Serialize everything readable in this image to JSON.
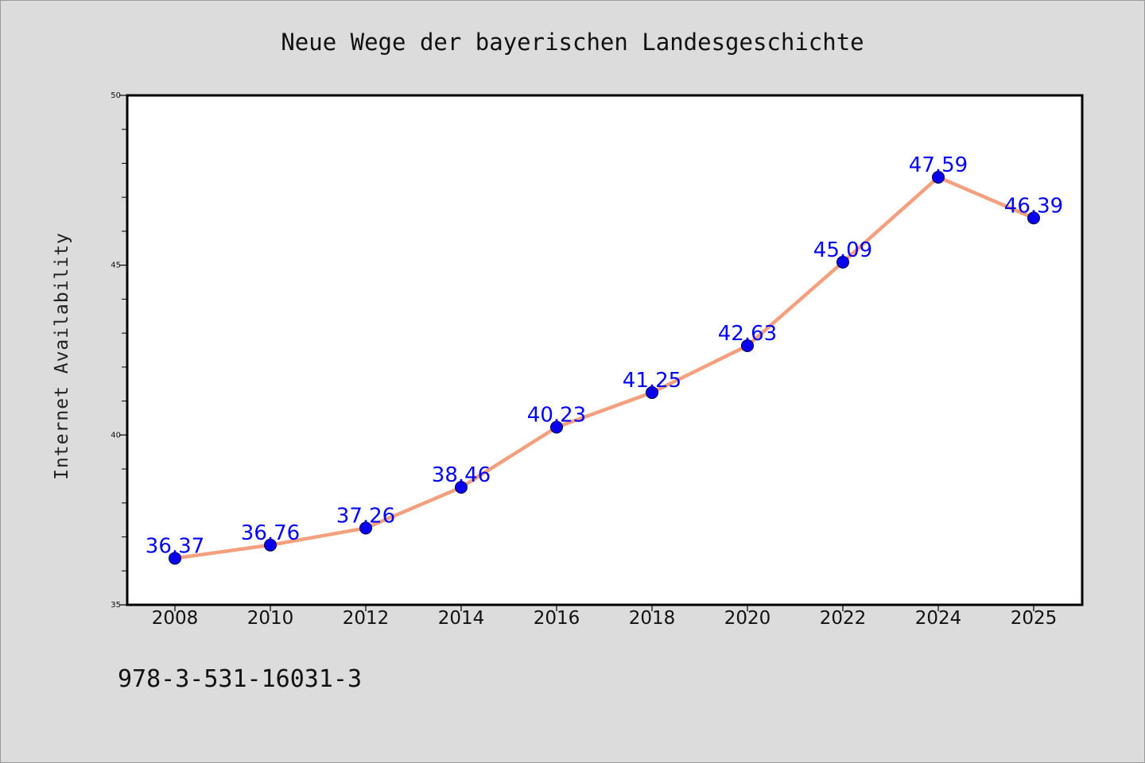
{
  "chart_data": {
    "type": "line",
    "title": "Neue Wege der bayerischen Landesgeschichte",
    "xlabel": "",
    "ylabel": "Internet Availability",
    "categories": [
      "2008",
      "2010",
      "2012",
      "2014",
      "2016",
      "2018",
      "2020",
      "2022",
      "2024",
      "2025"
    ],
    "series": [
      {
        "values": [
          36.37,
          36.76,
          37.26,
          38.46,
          40.23,
          41.25,
          42.63,
          45.09,
          47.59,
          46.39
        ],
        "labels": [
          "36.37",
          "36.76",
          "37.26",
          "38.46",
          "40.23",
          "41.25",
          "42.63",
          "45.09",
          "47.59",
          "46.39"
        ]
      }
    ],
    "ylim": [
      35,
      50
    ],
    "yticks": [
      "35",
      "40",
      "45",
      "50"
    ],
    "grid": false,
    "colors": {
      "line": "#f4a07e",
      "marker": "#0a00f0",
      "marker_edge": "#000044",
      "data_label": "#0000ff",
      "plot_background": "#ffffff",
      "page_background": "#dcdcdc"
    }
  },
  "footnote": "978-3-531-16031-3"
}
